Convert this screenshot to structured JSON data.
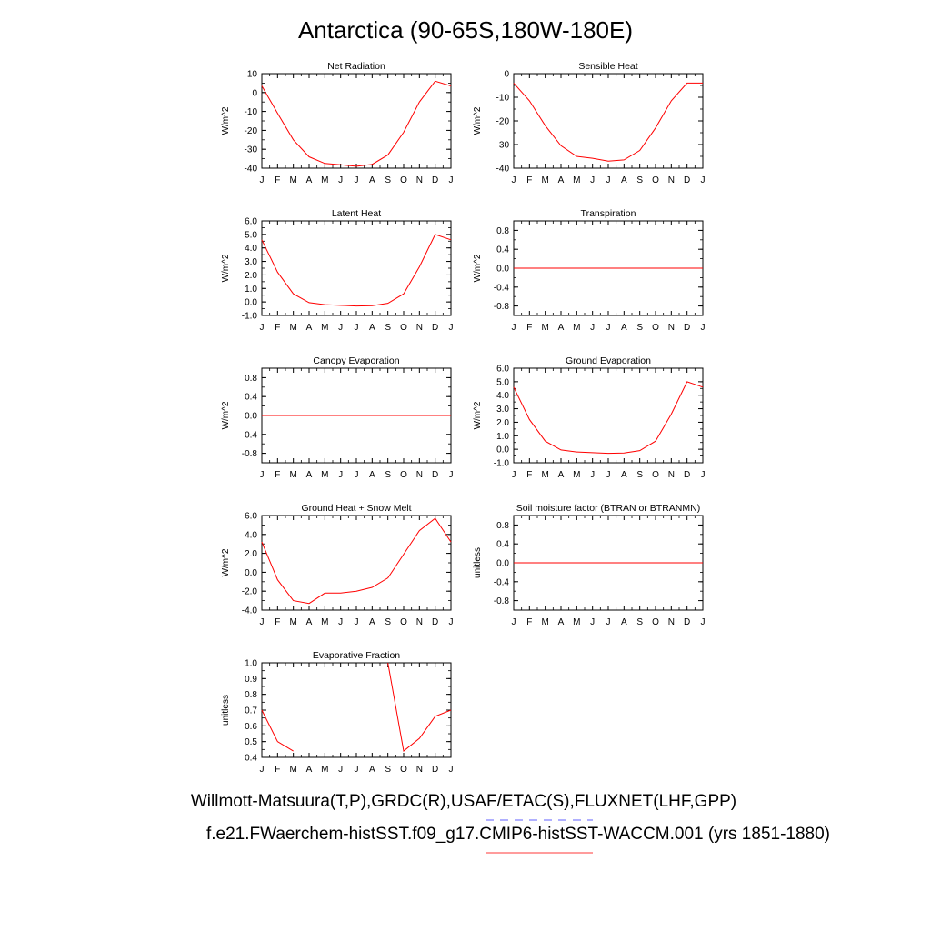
{
  "figure": {
    "title": "Antarctica (90-65S,180W-180E)",
    "footer_obs": "Willmott-Matsuura(T,P),GRDC(R),USAF/ETAC(S),FLUXNET(LHF,GPP)",
    "footer_case": "f.e21.FWaerchem-histSST.f09_g17.CMIP6-histSST-WACCM.001 (yrs 1851-1880)",
    "obs_line_color": "#8080ff",
    "case_line_color": "#ff6060",
    "series_color": "#ff0000"
  },
  "chart_data": [
    {
      "type": "line",
      "title": "Net Radiation",
      "ylabel": "W/m^2",
      "x": [
        "J",
        "F",
        "M",
        "A",
        "M",
        "J",
        "J",
        "A",
        "S",
        "O",
        "N",
        "D",
        "J"
      ],
      "values": [
        3.5,
        -11,
        -25,
        -34,
        -37.5,
        -38.2,
        -39,
        -38,
        -33,
        -21,
        -5,
        6,
        3.5
      ],
      "ylim": [
        -40,
        10
      ],
      "yticks": [
        -40,
        -30,
        -20,
        -10,
        0,
        10
      ],
      "ytick_labels": [
        "-40",
        "-30",
        "-20",
        "-10",
        "0",
        "10"
      ]
    },
    {
      "type": "line",
      "title": "Sensible Heat",
      "ylabel": "W/m^2",
      "x": [
        "J",
        "F",
        "M",
        "A",
        "M",
        "J",
        "J",
        "A",
        "S",
        "O",
        "N",
        "D",
        "J"
      ],
      "values": [
        -4,
        -11.5,
        -22,
        -30.5,
        -35,
        -35.8,
        -37,
        -36.5,
        -32.5,
        -23,
        -11.5,
        -4,
        -4
      ],
      "ylim": [
        -40,
        0
      ],
      "yticks": [
        -40,
        -30,
        -20,
        -10,
        0
      ],
      "ytick_labels": [
        "-40",
        "-30",
        "-20",
        "-10",
        "0"
      ]
    },
    {
      "type": "line",
      "title": "Latent Heat",
      "ylabel": "W/m^2",
      "x": [
        "J",
        "F",
        "M",
        "A",
        "M",
        "J",
        "J",
        "A",
        "S",
        "O",
        "N",
        "D",
        "J"
      ],
      "values": [
        4.6,
        2.2,
        0.6,
        -0.05,
        -0.2,
        -0.25,
        -0.3,
        -0.28,
        -0.1,
        0.6,
        2.6,
        5.0,
        4.6
      ],
      "ylim": [
        -1,
        6
      ],
      "yticks": [
        -1,
        0,
        1,
        2,
        3,
        4,
        5,
        6
      ],
      "ytick_labels": [
        "-1.0",
        "0.0",
        "1.0",
        "2.0",
        "3.0",
        "4.0",
        "5.0",
        "6.0"
      ]
    },
    {
      "type": "line",
      "title": "Transpiration",
      "ylabel": "W/m^2",
      "x": [
        "J",
        "F",
        "M",
        "A",
        "M",
        "J",
        "J",
        "A",
        "S",
        "O",
        "N",
        "D",
        "J"
      ],
      "values": [
        0,
        0,
        0,
        0,
        0,
        0,
        0,
        0,
        0,
        0,
        0,
        0,
        0
      ],
      "ylim": [
        -1,
        1
      ],
      "yticks": [
        -0.8,
        -0.4,
        0,
        0.4,
        0.8
      ],
      "ytick_labels": [
        "-0.8",
        "-0.4",
        "0.0",
        "0.4",
        "0.8"
      ]
    },
    {
      "type": "line",
      "title": "Canopy Evaporation",
      "ylabel": "W/m^2",
      "x": [
        "J",
        "F",
        "M",
        "A",
        "M",
        "J",
        "J",
        "A",
        "S",
        "O",
        "N",
        "D",
        "J"
      ],
      "values": [
        0,
        0,
        0,
        0,
        0,
        0,
        0,
        0,
        0,
        0,
        0,
        0,
        0
      ],
      "ylim": [
        -1,
        1
      ],
      "yticks": [
        -0.8,
        -0.4,
        0,
        0.4,
        0.8
      ],
      "ytick_labels": [
        "-0.8",
        "-0.4",
        "0.0",
        "0.4",
        "0.8"
      ]
    },
    {
      "type": "line",
      "title": "Ground Evaporation",
      "ylabel": "W/m^2",
      "x": [
        "J",
        "F",
        "M",
        "A",
        "M",
        "J",
        "J",
        "A",
        "S",
        "O",
        "N",
        "D",
        "J"
      ],
      "values": [
        4.6,
        2.2,
        0.6,
        -0.05,
        -0.2,
        -0.25,
        -0.3,
        -0.28,
        -0.1,
        0.6,
        2.6,
        5.0,
        4.6
      ],
      "ylim": [
        -1,
        6
      ],
      "yticks": [
        -1,
        0,
        1,
        2,
        3,
        4,
        5,
        6
      ],
      "ytick_labels": [
        "-1.0",
        "0.0",
        "1.0",
        "2.0",
        "3.0",
        "4.0",
        "5.0",
        "6.0"
      ]
    },
    {
      "type": "line",
      "title": "Ground Heat + Snow Melt",
      "ylabel": "W/m^2",
      "x": [
        "J",
        "F",
        "M",
        "A",
        "M",
        "J",
        "J",
        "A",
        "S",
        "O",
        "N",
        "D",
        "J"
      ],
      "values": [
        3.2,
        -0.8,
        -3.0,
        -3.3,
        -2.2,
        -2.2,
        -2.0,
        -1.6,
        -0.6,
        1.9,
        4.4,
        5.7,
        3.2
      ],
      "ylim": [
        -4,
        6
      ],
      "yticks": [
        -4,
        -2,
        0,
        2,
        4,
        6
      ],
      "ytick_labels": [
        "-4.0",
        "-2.0",
        "0.0",
        "2.0",
        "4.0",
        "6.0"
      ]
    },
    {
      "type": "line",
      "title": "Soil moisture factor (BTRAN or BTRANMN)",
      "ylabel": "unitless",
      "x": [
        "J",
        "F",
        "M",
        "A",
        "M",
        "J",
        "J",
        "A",
        "S",
        "O",
        "N",
        "D",
        "J"
      ],
      "values": [
        0,
        0,
        0,
        0,
        0,
        0,
        0,
        0,
        0,
        0,
        0,
        0,
        0
      ],
      "ylim": [
        -1,
        1
      ],
      "yticks": [
        -0.8,
        -0.4,
        0,
        0.4,
        0.8
      ],
      "ytick_labels": [
        "-0.8",
        "-0.4",
        "0.0",
        "0.4",
        "0.8"
      ]
    },
    {
      "type": "line",
      "title": "Evaporative Fraction",
      "ylabel": "unitless",
      "x": [
        "J",
        "F",
        "M",
        "A",
        "M",
        "J",
        "J",
        "A",
        "S",
        "O",
        "N",
        "D",
        "J"
      ],
      "values": [
        0.7,
        0.5,
        0.44,
        null,
        null,
        null,
        null,
        null,
        1.0,
        0.44,
        0.52,
        0.66,
        0.7
      ],
      "ylim": [
        0.4,
        1.0
      ],
      "yticks": [
        0.4,
        0.5,
        0.6,
        0.7,
        0.8,
        0.9,
        1.0
      ],
      "ytick_labels": [
        "0.4",
        "0.5",
        "0.6",
        "0.7",
        "0.8",
        "0.9",
        "1.0"
      ]
    }
  ]
}
